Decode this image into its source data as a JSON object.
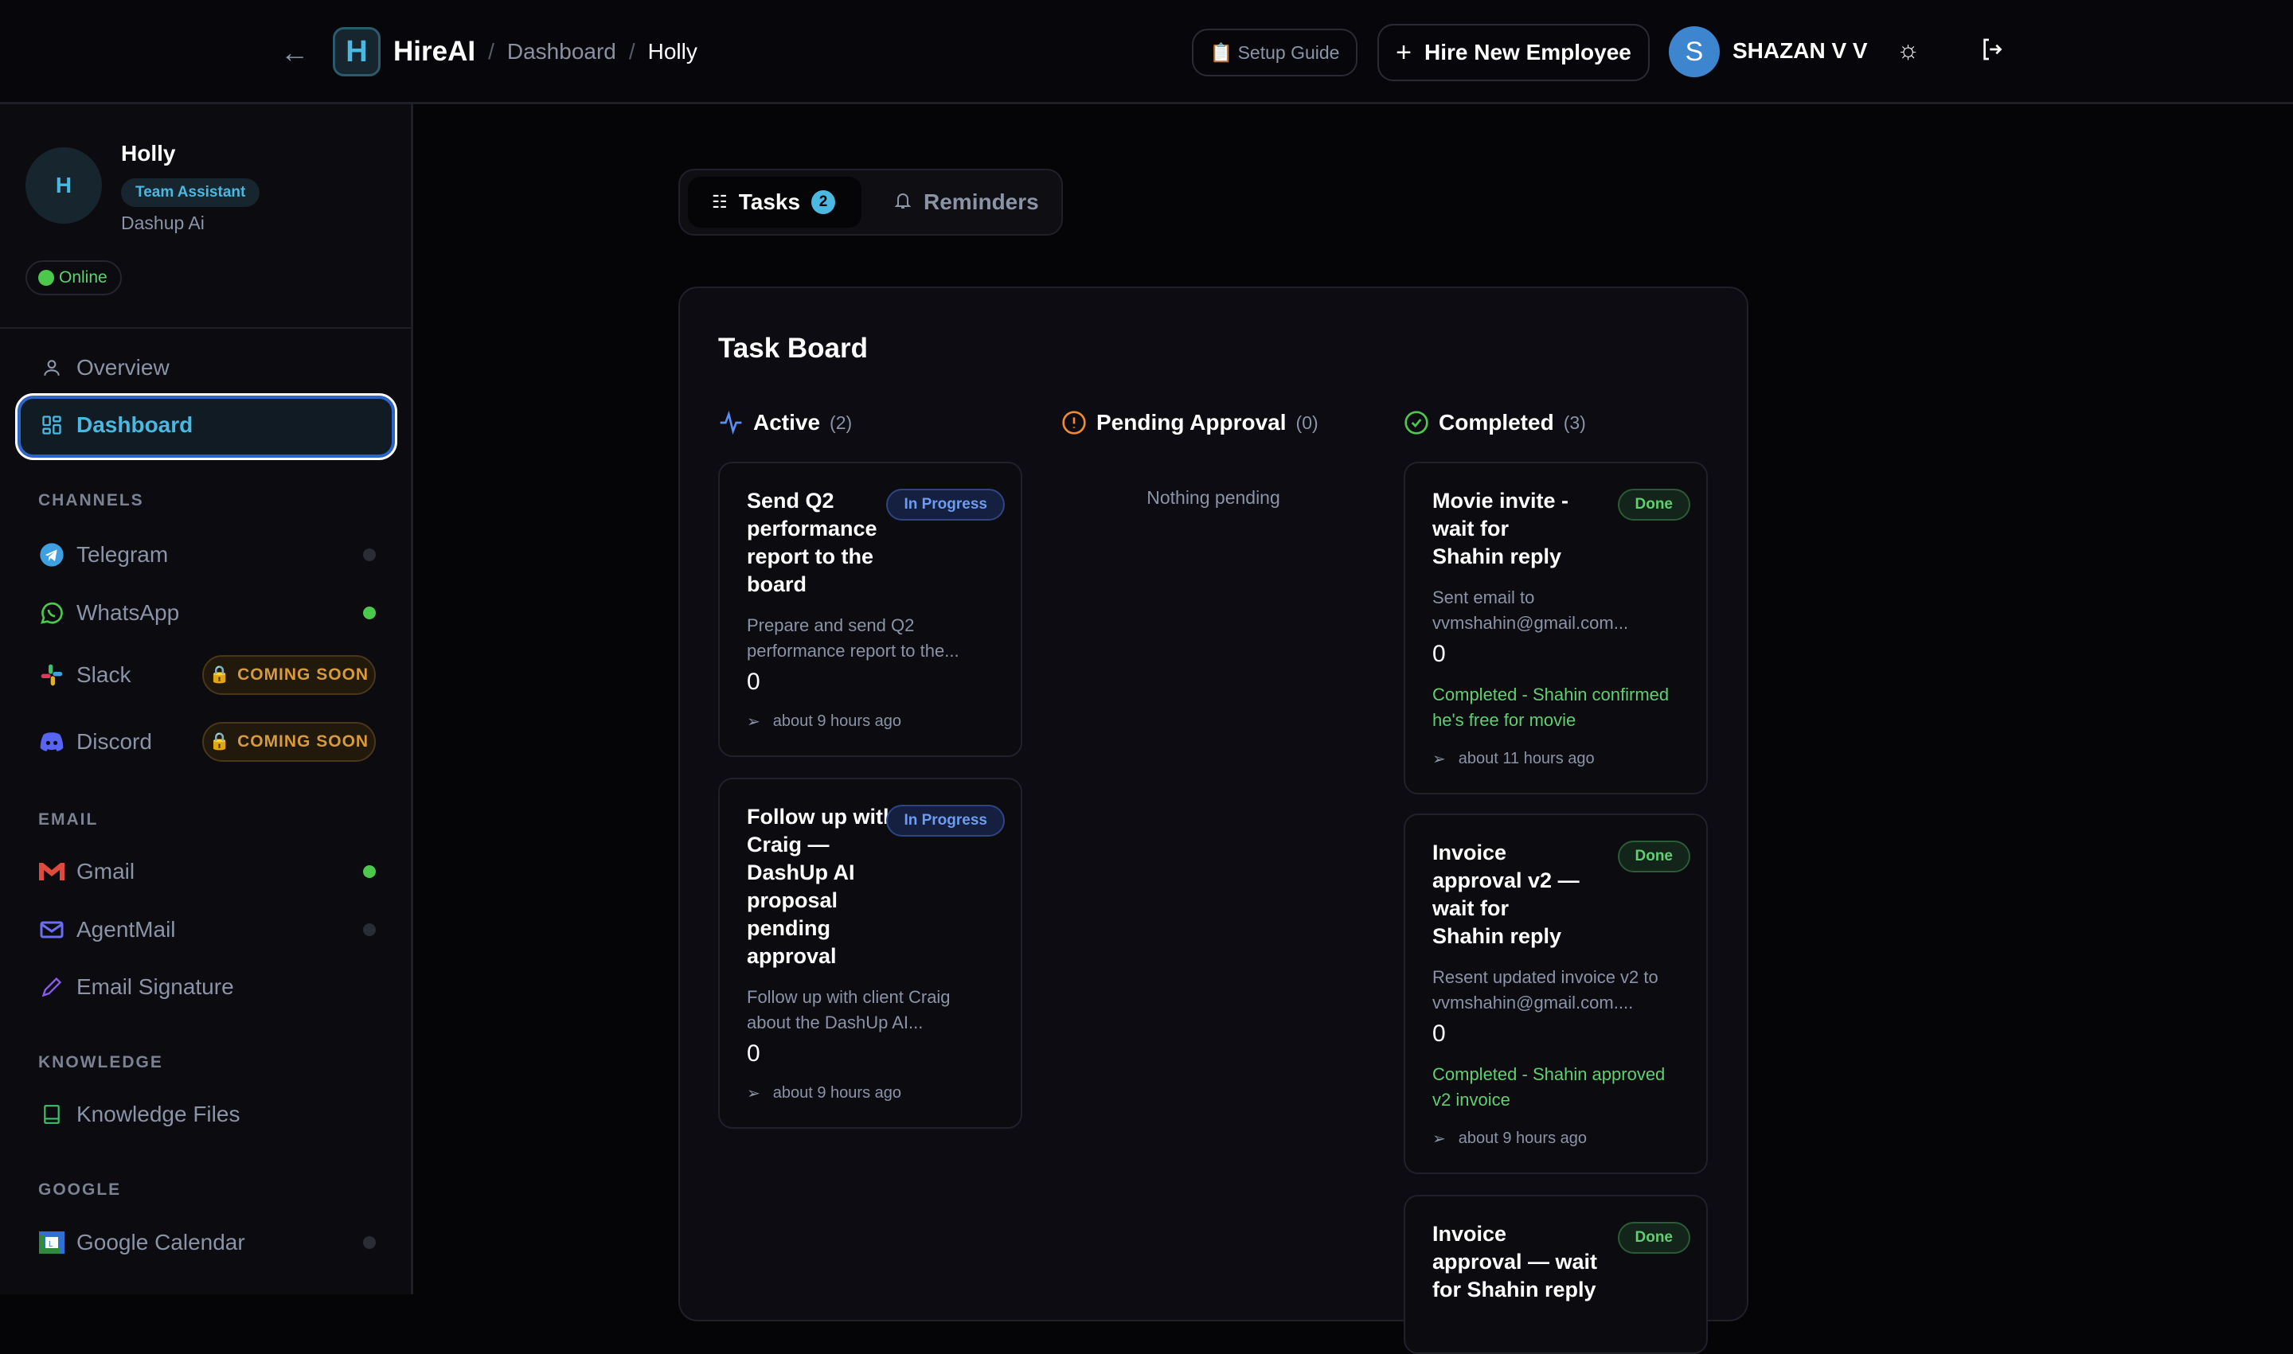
{
  "header": {
    "brand": "HireAI",
    "logo_letter": "H",
    "breadcrumb": [
      "Dashboard",
      "Holly"
    ],
    "setup_guide": "📋 Setup Guide",
    "hire_button": "Hire New Employee",
    "user_initial": "S",
    "user_name": "SHAZAN V V"
  },
  "profile": {
    "initial": "H",
    "name": "Holly",
    "role": "Team Assistant",
    "company": "Dashup Ai",
    "status": "Online"
  },
  "nav": {
    "overview": "Overview",
    "dashboard": "Dashboard"
  },
  "sections": {
    "channels": "CHANNELS",
    "email": "EMAIL",
    "knowledge": "KNOWLEDGE",
    "google": "GOOGLE"
  },
  "channels": [
    {
      "label": "Telegram",
      "connected": false
    },
    {
      "label": "WhatsApp",
      "connected": true
    },
    {
      "label": "Slack",
      "badge": "COMING SOON"
    },
    {
      "label": "Discord",
      "badge": "COMING SOON"
    }
  ],
  "email": [
    {
      "label": "Gmail",
      "connected": true
    },
    {
      "label": "AgentMail",
      "connected": false
    },
    {
      "label": "Email Signature"
    }
  ],
  "knowledge": [
    {
      "label": "Knowledge Files"
    }
  ],
  "google": [
    {
      "label": "Google Calendar",
      "connected": false
    }
  ],
  "tabs": {
    "tasks": "Tasks",
    "tasks_count": "2",
    "reminders": "Reminders"
  },
  "board": {
    "title": "Task Board",
    "columns": {
      "active": {
        "label": "Active",
        "count": "(2)"
      },
      "pending": {
        "label": "Pending Approval",
        "count": "(0)",
        "empty": "Nothing pending"
      },
      "completed": {
        "label": "Completed",
        "count": "(3)"
      }
    },
    "active": [
      {
        "title": "Send Q2 performance report to the board",
        "status": "In Progress",
        "desc": "Prepare and send Q2 performance report to the...",
        "value": "0",
        "time": "about 9 hours ago"
      },
      {
        "title": "Follow up with Craig — DashUp AI proposal pending approval",
        "status": "In Progress",
        "desc": "Follow up with client Craig about the DashUp AI...",
        "value": "0",
        "time": "about 9 hours ago"
      }
    ],
    "completed": [
      {
        "title": "Movie invite - wait for Shahin reply",
        "status": "Done",
        "desc": "Sent email to vvmshahin@gmail.com...",
        "value": "0",
        "note": "Completed - Shahin confirmed he's free for movie",
        "time": "about 11 hours ago"
      },
      {
        "title": "Invoice approval v2 — wait for Shahin reply",
        "status": "Done",
        "desc": "Resent updated invoice v2 to vvmshahin@gmail.com....",
        "value": "0",
        "note": "Completed - Shahin approved v2 invoice",
        "time": "about 9 hours ago"
      },
      {
        "title": "Invoice approval — wait for Shahin reply",
        "status": "Done"
      }
    ]
  }
}
